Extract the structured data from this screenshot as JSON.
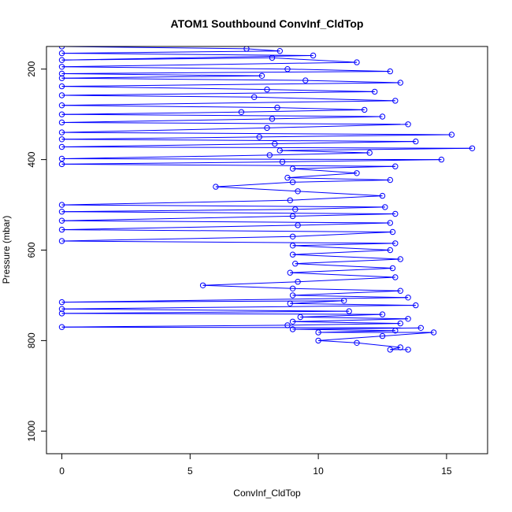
{
  "chart_data": {
    "type": "scatter",
    "title": "ATOM1 Southbound ConvInf_CldTop",
    "xlabel": "ConvInf_CldTop",
    "ylabel": "Pressure (mbar)",
    "xlim": [
      -0.6,
      16.6
    ],
    "ylim": [
      1050,
      150
    ],
    "y_reversed": true,
    "xticks": [
      0,
      5,
      10,
      15
    ],
    "yticks": [
      200,
      400,
      600,
      800,
      1000
    ],
    "grid": false,
    "legend": "none",
    "colors": {
      "series": "#0000ff",
      "axis": "#000000",
      "background": "#ffffff"
    },
    "series": [
      {
        "marker": "open-circle",
        "connected": true,
        "points": [
          [
            0,
            150
          ],
          [
            7.2,
            155
          ],
          [
            8.5,
            160
          ],
          [
            0,
            165
          ],
          [
            9.8,
            170
          ],
          [
            0,
            180
          ],
          [
            8.2,
            175
          ],
          [
            11.5,
            185
          ],
          [
            0,
            195
          ],
          [
            8.8,
            200
          ],
          [
            12.8,
            205
          ],
          [
            0,
            210
          ],
          [
            7.8,
            215
          ],
          [
            0,
            220
          ],
          [
            9.5,
            225
          ],
          [
            13.2,
            230
          ],
          [
            0,
            238
          ],
          [
            8.0,
            245
          ],
          [
            12.2,
            250
          ],
          [
            0,
            258
          ],
          [
            7.5,
            262
          ],
          [
            13.0,
            270
          ],
          [
            0,
            280
          ],
          [
            8.4,
            285
          ],
          [
            11.8,
            290
          ],
          [
            7.0,
            295
          ],
          [
            0,
            300
          ],
          [
            12.5,
            305
          ],
          [
            8.2,
            310
          ],
          [
            0,
            318
          ],
          [
            13.5,
            322
          ],
          [
            8.0,
            330
          ],
          [
            0,
            340
          ],
          [
            15.2,
            345
          ],
          [
            7.7,
            350
          ],
          [
            0,
            355
          ],
          [
            13.8,
            360
          ],
          [
            8.3,
            365
          ],
          [
            0,
            372
          ],
          [
            16.0,
            375
          ],
          [
            8.5,
            380
          ],
          [
            12.0,
            385
          ],
          [
            8.1,
            390
          ],
          [
            0,
            398
          ],
          [
            14.8,
            400
          ],
          [
            8.6,
            405
          ],
          [
            0,
            410
          ],
          [
            13.0,
            415
          ],
          [
            9.0,
            420
          ],
          [
            11.5,
            430
          ],
          [
            8.8,
            440
          ],
          [
            12.8,
            445
          ],
          [
            9.0,
            450
          ],
          [
            6.0,
            460
          ],
          [
            9.2,
            470
          ],
          [
            12.5,
            480
          ],
          [
            8.9,
            490
          ],
          [
            0,
            500
          ],
          [
            12.6,
            505
          ],
          [
            9.1,
            510
          ],
          [
            0,
            515
          ],
          [
            13.0,
            520
          ],
          [
            9.0,
            525
          ],
          [
            0,
            535
          ],
          [
            12.8,
            540
          ],
          [
            9.2,
            545
          ],
          [
            0,
            555
          ],
          [
            12.9,
            560
          ],
          [
            9.0,
            570
          ],
          [
            0,
            580
          ],
          [
            13.0,
            585
          ],
          [
            9.0,
            590
          ],
          [
            12.8,
            600
          ],
          [
            9.0,
            610
          ],
          [
            13.2,
            620
          ],
          [
            9.1,
            630
          ],
          [
            12.9,
            640
          ],
          [
            8.9,
            650
          ],
          [
            13.0,
            660
          ],
          [
            9.2,
            670
          ],
          [
            5.5,
            678
          ],
          [
            9.0,
            685
          ],
          [
            13.2,
            690
          ],
          [
            9.0,
            700
          ],
          [
            13.5,
            705
          ],
          [
            0,
            715
          ],
          [
            11.0,
            712
          ],
          [
            8.9,
            718
          ],
          [
            13.8,
            722
          ],
          [
            0,
            730
          ],
          [
            11.2,
            735
          ],
          [
            0,
            740
          ],
          [
            12.5,
            742
          ],
          [
            9.3,
            748
          ],
          [
            13.5,
            752
          ],
          [
            9.0,
            758
          ],
          [
            13.2,
            762
          ],
          [
            8.8,
            766
          ],
          [
            0,
            770
          ],
          [
            14.0,
            772
          ],
          [
            9.0,
            775
          ],
          [
            13.0,
            778
          ],
          [
            10.0,
            782
          ],
          [
            14.5,
            782
          ],
          [
            12.5,
            790
          ],
          [
            10.0,
            800
          ],
          [
            11.5,
            805
          ],
          [
            13.2,
            815
          ],
          [
            12.8,
            820
          ],
          [
            13.5,
            820
          ]
        ]
      }
    ]
  }
}
